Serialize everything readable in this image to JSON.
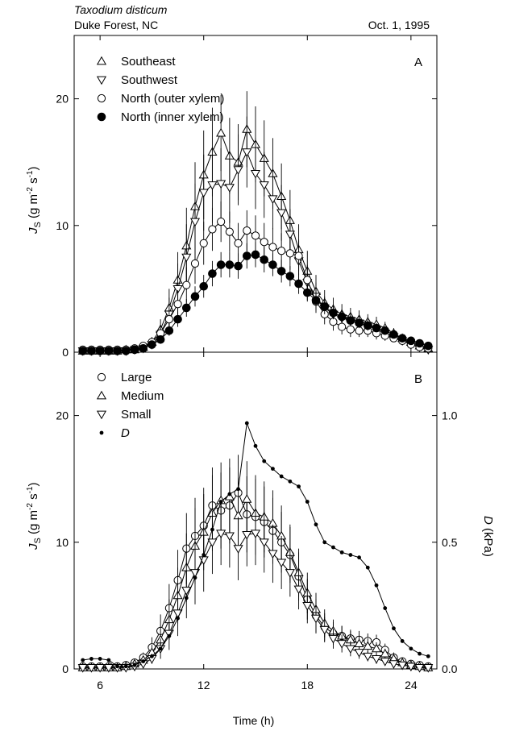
{
  "header": {
    "species": "Taxodium disticum",
    "site": "Duke Forest, NC",
    "date": "Oct. 1, 1995"
  },
  "x_label": "Time (h)",
  "chart_data": [
    {
      "panel": "A",
      "type": "line",
      "ylabel": "J_S (g m^-2 s^-1)",
      "xlim": [
        4.5,
        25.5
      ],
      "ylim": [
        0,
        25
      ],
      "x_ticks": [
        6,
        12,
        18,
        24
      ],
      "y_ticks": [
        0,
        10,
        20
      ],
      "legend_position": "top-left",
      "series": [
        {
          "name": "Southeast",
          "marker": "triangle-up-open",
          "x": [
            5,
            5.5,
            6,
            6.5,
            7,
            7.5,
            8,
            8.5,
            9,
            9.5,
            10,
            10.5,
            11,
            11.5,
            12,
            12.5,
            13,
            13.5,
            14,
            14.5,
            15,
            15.5,
            16,
            16.5,
            17,
            17.5,
            18,
            18.5,
            19,
            19.5,
            20,
            20.5,
            21,
            21.5,
            22,
            22.5,
            23,
            23.5,
            24,
            24.5,
            25
          ],
          "y": [
            0.1,
            0.1,
            0.1,
            0.1,
            0.1,
            0.2,
            0.2,
            0.4,
            0.8,
            1.8,
            3.5,
            5.7,
            8.4,
            11.5,
            14.0,
            15.8,
            17.3,
            15.5,
            15.0,
            17.6,
            16.4,
            15.3,
            14.1,
            12.3,
            10.4,
            8.1,
            6.4,
            4.8,
            3.9,
            3.4,
            3.0,
            2.8,
            2.6,
            2.4,
            2.2,
            1.9,
            1.5,
            1.1,
            0.8,
            0.5,
            0.3
          ],
          "error": [
            0,
            0,
            0,
            0,
            0,
            0,
            0,
            0.2,
            0.4,
            0.8,
            1.5,
            2.2,
            3.0,
            3.5,
            3.5,
            3.5,
            3.0,
            3.0,
            3.0,
            3.0,
            3.0,
            3.0,
            2.8,
            2.6,
            2.4,
            2.0,
            1.6,
            1.3,
            1.0,
            0.9,
            0.8,
            0.7,
            0.7,
            0.6,
            0.6,
            0.5,
            0.4,
            0.3,
            0.3,
            0.2,
            0.1
          ]
        },
        {
          "name": "Southwest",
          "marker": "triangle-down-open",
          "x": [
            5,
            5.5,
            6,
            6.5,
            7,
            7.5,
            8,
            8.5,
            9,
            9.5,
            10,
            10.5,
            11,
            11.5,
            12,
            12.5,
            13,
            13.5,
            14,
            14.5,
            15,
            15.5,
            16,
            16.5,
            17,
            17.5,
            18,
            18.5,
            19,
            19.5,
            20,
            20.5,
            21,
            21.5,
            22,
            22.5,
            23,
            23.5,
            24,
            24.5,
            25
          ],
          "y": [
            0.1,
            0.1,
            0.1,
            0.1,
            0.1,
            0.1,
            0.2,
            0.3,
            0.6,
            1.4,
            3.0,
            5.0,
            7.5,
            10.3,
            12.6,
            13.2,
            13.3,
            13.0,
            14.4,
            15.8,
            14.1,
            13.2,
            12.1,
            11.0,
            9.3,
            7.2,
            5.5,
            4.4,
            3.5,
            3.0,
            2.7,
            2.5,
            2.3,
            2.1,
            1.8,
            1.5,
            1.2,
            0.9,
            0.6,
            0.4,
            0.2
          ],
          "error": [
            0,
            0,
            0,
            0,
            0,
            0,
            0,
            0.2,
            0.3,
            0.7,
            1.3,
            2.0,
            2.6,
            3.0,
            3.0,
            3.0,
            2.8,
            2.8,
            2.8,
            2.8,
            2.8,
            2.6,
            2.4,
            2.2,
            2.0,
            1.7,
            1.4,
            1.1,
            0.9,
            0.8,
            0.7,
            0.6,
            0.6,
            0.5,
            0.5,
            0.4,
            0.3,
            0.3,
            0.2,
            0.2,
            0.1
          ]
        },
        {
          "name": "North (outer xylem)",
          "marker": "circle-open",
          "x": [
            5,
            5.5,
            6,
            6.5,
            7,
            7.5,
            8,
            8.5,
            9,
            9.5,
            10,
            10.5,
            11,
            11.5,
            12,
            12.5,
            13,
            13.5,
            14,
            14.5,
            15,
            15.5,
            16,
            16.5,
            17,
            17.5,
            18,
            18.5,
            19,
            19.5,
            20,
            20.5,
            21,
            21.5,
            22,
            22.5,
            23,
            23.5,
            24,
            24.5,
            25
          ],
          "y": [
            0.2,
            0.2,
            0.2,
            0.2,
            0.2,
            0.2,
            0.3,
            0.5,
            0.8,
            1.5,
            2.6,
            3.8,
            5.3,
            7.0,
            8.6,
            9.7,
            10.3,
            9.5,
            8.6,
            9.6,
            9.2,
            8.7,
            8.3,
            8.0,
            7.8,
            7.6,
            5.7,
            4.0,
            3.0,
            2.4,
            2.0,
            1.8,
            1.7,
            1.7,
            1.5,
            1.3,
            1.1,
            0.9,
            0.6,
            0.4,
            0.3
          ],
          "error": [
            0,
            0,
            0,
            0,
            0,
            0,
            0.1,
            0.2,
            0.3,
            0.5,
            0.8,
            1.1,
            1.4,
            1.6,
            1.7,
            1.7,
            1.6,
            1.6,
            1.6,
            1.6,
            1.6,
            1.5,
            1.5,
            1.4,
            1.3,
            1.2,
            1.0,
            0.9,
            0.8,
            0.7,
            0.6,
            0.6,
            0.5,
            0.5,
            0.5,
            0.4,
            0.3,
            0.3,
            0.2,
            0.2,
            0.1
          ]
        },
        {
          "name": "North (inner xylem)",
          "marker": "circle-filled",
          "x": [
            5,
            5.5,
            6,
            6.5,
            7,
            7.5,
            8,
            8.5,
            9,
            9.5,
            10,
            10.5,
            11,
            11.5,
            12,
            12.5,
            13,
            13.5,
            14,
            14.5,
            15,
            15.5,
            16,
            16.5,
            17,
            17.5,
            18,
            18.5,
            19,
            19.5,
            20,
            20.5,
            21,
            21.5,
            22,
            22.5,
            23,
            23.5,
            24,
            24.5,
            25
          ],
          "y": [
            0.1,
            0.1,
            0.1,
            0.1,
            0.1,
            0.1,
            0.2,
            0.3,
            0.6,
            1.0,
            1.7,
            2.6,
            3.5,
            4.4,
            5.2,
            6.2,
            6.9,
            6.9,
            6.8,
            7.6,
            7.7,
            7.3,
            6.9,
            6.4,
            6.0,
            5.4,
            4.7,
            4.1,
            3.6,
            3.1,
            2.8,
            2.5,
            2.3,
            2.1,
            1.9,
            1.7,
            1.4,
            1.1,
            0.9,
            0.7,
            0.5
          ],
          "error": [
            0,
            0,
            0,
            0,
            0,
            0,
            0,
            0.1,
            0.2,
            0.3,
            0.4,
            0.6,
            0.7,
            0.8,
            0.9,
            1.0,
            1.0,
            1.0,
            1.0,
            1.0,
            1.0,
            1.0,
            0.9,
            0.9,
            0.8,
            0.8,
            0.7,
            0.6,
            0.6,
            0.5,
            0.5,
            0.4,
            0.4,
            0.4,
            0.3,
            0.3,
            0.3,
            0.2,
            0.2,
            0.2,
            0.1
          ]
        }
      ]
    },
    {
      "panel": "B",
      "type": "line",
      "ylabel": "J_S (g m^-2 s^-1)",
      "y2label": "D (kPa)",
      "xlim": [
        4.5,
        25.5
      ],
      "ylim": [
        0,
        25
      ],
      "y2lim": [
        0,
        1.25
      ],
      "x_ticks": [
        6,
        12,
        18,
        24
      ],
      "y_ticks": [
        0,
        10,
        20
      ],
      "y2_ticks": [
        0.0,
        0.5,
        1.0
      ],
      "legend_position": "top-left",
      "series": [
        {
          "name": "Large",
          "marker": "circle-open",
          "x": [
            5,
            5.5,
            6,
            6.5,
            7,
            7.5,
            8,
            8.5,
            9,
            9.5,
            10,
            10.5,
            11,
            11.5,
            12,
            12.5,
            13,
            13.5,
            14,
            14.5,
            15,
            15.5,
            16,
            16.5,
            17,
            17.5,
            18,
            18.5,
            19,
            19.5,
            20,
            20.5,
            21,
            21.5,
            22,
            22.5,
            23,
            23.5,
            24,
            24.5,
            25
          ],
          "y": [
            0.2,
            0.2,
            0.2,
            0.2,
            0.2,
            0.3,
            0.5,
            0.9,
            1.7,
            3.0,
            4.8,
            7.0,
            9.5,
            10.5,
            11.3,
            12.9,
            12.5,
            12.9,
            13.9,
            12.2,
            12.0,
            11.6,
            10.9,
            10.0,
            9.0,
            7.3,
            5.5,
            4.2,
            3.3,
            2.8,
            2.6,
            2.4,
            2.3,
            2.2,
            2.1,
            1.5,
            0.9,
            0.6,
            0.4,
            0.3,
            0.2
          ],
          "error": [
            0,
            0,
            0,
            0,
            0,
            0.1,
            0.2,
            0.4,
            0.8,
            1.3,
            1.9,
            2.4,
            2.8,
            3.0,
            3.0,
            3.0,
            3.0,
            3.0,
            3.0,
            3.0,
            3.0,
            2.8,
            2.6,
            2.4,
            2.2,
            1.9,
            1.6,
            1.3,
            1.1,
            0.9,
            0.8,
            0.7,
            0.7,
            0.6,
            0.6,
            0.5,
            0.4,
            0.3,
            0.2,
            0.2,
            0.1
          ]
        },
        {
          "name": "Medium",
          "marker": "triangle-up-open",
          "x": [
            5,
            5.5,
            6,
            6.5,
            7,
            7.5,
            8,
            8.5,
            9,
            9.5,
            10,
            10.5,
            11,
            11.5,
            12,
            12.5,
            13,
            13.5,
            14,
            14.5,
            15,
            15.5,
            16,
            16.5,
            17,
            17.5,
            18,
            18.5,
            19,
            19.5,
            20,
            20.5,
            21,
            21.5,
            22,
            22.5,
            23,
            23.5,
            24,
            24.5,
            25
          ],
          "y": [
            0.1,
            0.1,
            0.1,
            0.1,
            0.1,
            0.2,
            0.4,
            0.7,
            1.3,
            2.3,
            3.9,
            5.8,
            8.0,
            9.7,
            10.8,
            12.3,
            13.3,
            13.6,
            12.1,
            13.4,
            12.3,
            12.0,
            11.5,
            10.5,
            9.2,
            7.6,
            6.0,
            4.7,
            3.6,
            3.0,
            2.6,
            2.3,
            2.0,
            1.8,
            1.6,
            1.2,
            0.8,
            0.5,
            0.3,
            0.2,
            0.1
          ],
          "error": [
            0,
            0,
            0,
            0,
            0,
            0.1,
            0.2,
            0.3,
            0.6,
            1.0,
            1.6,
            2.2,
            2.7,
            3.0,
            3.0,
            3.0,
            3.0,
            3.0,
            3.0,
            3.0,
            3.0,
            2.8,
            2.6,
            2.4,
            2.2,
            1.9,
            1.6,
            1.3,
            1.1,
            0.9,
            0.8,
            0.7,
            0.6,
            0.6,
            0.5,
            0.4,
            0.3,
            0.2,
            0.2,
            0.1,
            0.1
          ]
        },
        {
          "name": "Small",
          "marker": "triangle-down-open",
          "x": [
            5,
            5.5,
            6,
            6.5,
            7,
            7.5,
            8,
            8.5,
            9,
            9.5,
            10,
            10.5,
            11,
            11.5,
            12,
            12.5,
            13,
            13.5,
            14,
            14.5,
            15,
            15.5,
            16,
            16.5,
            17,
            17.5,
            18,
            18.5,
            19,
            19.5,
            20,
            20.5,
            21,
            21.5,
            22,
            22.5,
            23,
            23.5,
            24,
            24.5,
            25
          ],
          "y": [
            0.1,
            0.1,
            0.1,
            0.1,
            0.1,
            0.1,
            0.2,
            0.4,
            0.8,
            1.6,
            2.8,
            4.4,
            6.2,
            7.6,
            8.6,
            10.0,
            10.7,
            10.5,
            9.5,
            10.6,
            10.7,
            10.0,
            9.1,
            8.4,
            7.6,
            6.3,
            5.0,
            4.0,
            3.1,
            2.4,
            2.0,
            1.6,
            1.3,
            1.0,
            0.8,
            0.6,
            0.4,
            0.3,
            0.2,
            0.1,
            0.1
          ],
          "error": [
            0,
            0,
            0,
            0,
            0,
            0,
            0.1,
            0.2,
            0.4,
            0.8,
            1.3,
            1.8,
            2.2,
            2.5,
            2.5,
            2.5,
            2.5,
            2.5,
            2.5,
            2.5,
            2.5,
            2.4,
            2.3,
            2.1,
            1.9,
            1.6,
            1.4,
            1.2,
            1.0,
            0.8,
            0.7,
            0.6,
            0.5,
            0.4,
            0.4,
            0.3,
            0.2,
            0.2,
            0.1,
            0.1,
            0.1
          ]
        },
        {
          "name": "D",
          "axis": "right",
          "marker": "dot-small",
          "x": [
            5,
            5.5,
            6,
            6.5,
            7,
            7.5,
            8,
            8.5,
            9,
            9.5,
            10,
            10.5,
            11,
            11.5,
            12,
            12.5,
            13,
            13.5,
            14,
            14.5,
            15,
            15.5,
            16,
            16.5,
            17,
            17.5,
            18,
            18.5,
            19,
            19.5,
            20,
            20.5,
            21,
            21.5,
            22,
            22.5,
            23,
            23.5,
            24,
            24.5,
            25
          ],
          "y": [
            0.035,
            0.04,
            0.04,
            0.035,
            0.01,
            0.01,
            0.015,
            0.03,
            0.05,
            0.08,
            0.13,
            0.2,
            0.28,
            0.36,
            0.45,
            0.55,
            0.66,
            0.69,
            0.71,
            0.97,
            0.88,
            0.82,
            0.79,
            0.76,
            0.74,
            0.72,
            0.66,
            0.57,
            0.5,
            0.48,
            0.46,
            0.45,
            0.44,
            0.4,
            0.33,
            0.24,
            0.16,
            0.11,
            0.08,
            0.06,
            0.05
          ]
        }
      ]
    }
  ]
}
